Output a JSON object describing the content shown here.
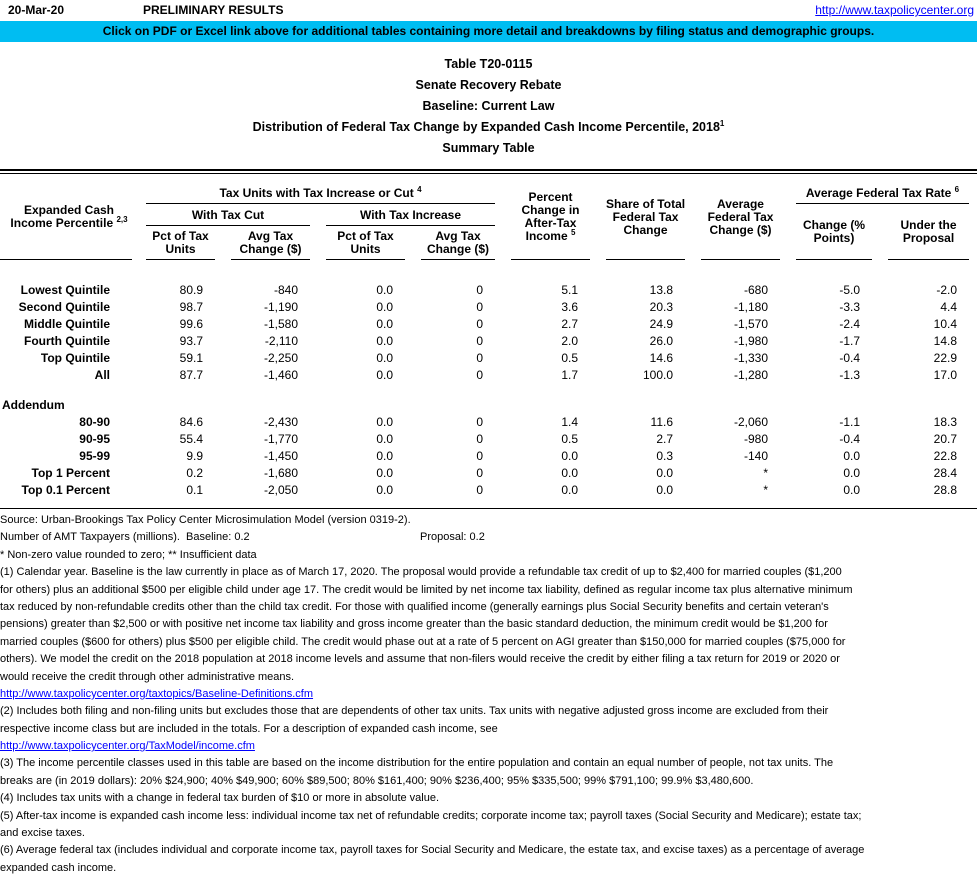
{
  "page": {
    "date": "20-Mar-20",
    "preliminary": "PRELIMINARY RESULTS",
    "site_link": "http://www.taxpolicycenter.org",
    "banner_text": "Click on PDF or Excel link above for additional tables containing more detail and breakdowns by filing status and demographic groups.",
    "banner_color": "#00bdf2",
    "link_color": "#0000ff"
  },
  "title": {
    "line1": "Table T20-0115",
    "line2": "Senate Recovery Rebate",
    "line3": "Baseline: Current Law",
    "line4": "Distribution of Federal Tax Change by Expanded Cash Income Percentile, 2018",
    "line4_sup": "1",
    "line5": "Summary Table"
  },
  "table": {
    "header": {
      "row_header": {
        "text": "Expanded Cash Income Percentile",
        "sup": "2,3"
      },
      "group_increase_or_cut": {
        "text": "Tax Units with Tax Increase or Cut",
        "sup": "4"
      },
      "with_tax_cut": "With Tax Cut",
      "with_tax_increase": "With Tax Increase",
      "col_pct_units": "Pct of Tax Units",
      "col_avg_change": "Avg Tax Change ($)",
      "col_pct_change_after_tax": {
        "text": "Percent Change in After-Tax Income",
        "sup": "5"
      },
      "col_share_total": "Share of Total Federal Tax Change",
      "col_avg_federal_change": "Average Federal Tax Change ($)",
      "group_avg_rate": {
        "text": "Average Federal Tax Rate",
        "sup": "6"
      },
      "col_rate_change": "Change (% Points)",
      "col_rate_under": "Under the Proposal"
    },
    "main_rows": [
      {
        "label": "Lowest Quintile",
        "values": [
          "80.9",
          "-840",
          "0.0",
          "0",
          "5.1",
          "13.8",
          "-680",
          "-5.0",
          "-2.0"
        ]
      },
      {
        "label": "Second Quintile",
        "values": [
          "98.7",
          "-1,190",
          "0.0",
          "0",
          "3.6",
          "20.3",
          "-1,180",
          "-3.3",
          "4.4"
        ]
      },
      {
        "label": "Middle Quintile",
        "values": [
          "99.6",
          "-1,580",
          "0.0",
          "0",
          "2.7",
          "24.9",
          "-1,570",
          "-2.4",
          "10.4"
        ]
      },
      {
        "label": "Fourth Quintile",
        "values": [
          "93.7",
          "-2,110",
          "0.0",
          "0",
          "2.0",
          "26.0",
          "-1,980",
          "-1.7",
          "14.8"
        ]
      },
      {
        "label": "Top Quintile",
        "values": [
          "59.1",
          "-2,250",
          "0.0",
          "0",
          "0.5",
          "14.6",
          "-1,330",
          "-0.4",
          "22.9"
        ]
      },
      {
        "label": "All",
        "values": [
          "87.7",
          "-1,460",
          "0.0",
          "0",
          "1.7",
          "100.0",
          "-1,280",
          "-1.3",
          "17.0"
        ]
      }
    ],
    "addendum_label": "Addendum",
    "addendum_rows": [
      {
        "label": "80-90",
        "values": [
          "84.6",
          "-2,430",
          "0.0",
          "0",
          "1.4",
          "11.6",
          "-2,060",
          "-1.1",
          "18.3"
        ]
      },
      {
        "label": "90-95",
        "values": [
          "55.4",
          "-1,770",
          "0.0",
          "0",
          "0.5",
          "2.7",
          "-980",
          "-0.4",
          "20.7"
        ]
      },
      {
        "label": "95-99",
        "values": [
          "9.9",
          "-1,450",
          "0.0",
          "0",
          "0.0",
          "0.3",
          "-140",
          "0.0",
          "22.8"
        ]
      },
      {
        "label": "Top 1 Percent",
        "values": [
          "0.2",
          "-1,680",
          "0.0",
          "0",
          "0.0",
          "0.0",
          "*",
          "0.0",
          "28.4"
        ]
      },
      {
        "label": "Top 0.1 Percent",
        "values": [
          "0.1",
          "-2,050",
          "0.0",
          "0",
          "0.0",
          "0.0",
          "*",
          "0.0",
          "28.8"
        ]
      }
    ]
  },
  "footer": {
    "source": "Source: Urban-Brookings Tax Policy Center Microsimulation Model (version 0319-2).",
    "amt_left": "Number of AMT Taxpayers (millions).  Baseline: 0.2",
    "amt_right": "Proposal: 0.2",
    "symbols_note": "* Non-zero value rounded to zero; ** Insufficient data",
    "lines": [
      {
        "text": "(1) Calendar year. Baseline is the law currently in place as of March 17, 2020. The proposal would provide a refundable tax credit of up to $2,400 for married couples ($1,200",
        "link": false
      },
      {
        "text": "for others) plus an additional $500 per eligible child under age 17. The credit would be limited by net income tax liability, defined as regular income tax plus alternative minimum",
        "link": false
      },
      {
        "text": "tax reduced by non-refundable credits other than the child tax credit. For those with qualified income (generally earnings plus Social Security benefits and certain veteran's",
        "link": false
      },
      {
        "text": "pensions) greater than $2,500 or with positive net income tax liability and gross income greater than the basic standard deduction, the minimum credit would be $1,200 for",
        "link": false
      },
      {
        "text": "married couples ($600 for others) plus $500 per eligible child. The credit would phase out at a rate of 5 percent on AGI greater than $150,000 for married couples ($75,000 for",
        "link": false
      },
      {
        "text": "others). We model the credit on the 2018 population at 2018 income levels and assume that non-filers would receive the credit by either filing a tax return for 2019 or 2020 or",
        "link": false
      },
      {
        "text": "would receive the credit through other administrative means.",
        "link": false
      },
      {
        "text": "http://www.taxpolicycenter.org/taxtopics/Baseline-Definitions.cfm",
        "link": true
      },
      {
        "text": "(2) Includes both filing and non-filing units but excludes those that are dependents of other tax units. Tax units with negative adjusted gross income are excluded from their",
        "link": false
      },
      {
        "text": "respective income class but are included in the totals. For a description of expanded cash income, see",
        "link": false
      },
      {
        "text": "http://www.taxpolicycenter.org/TaxModel/income.cfm",
        "link": true
      },
      {
        "text": "(3) The income percentile classes used in this table are based on the income distribution for the entire population and contain an equal number of people, not tax units. The",
        "link": false
      },
      {
        "text": "breaks are (in 2019 dollars): 20% $24,900; 40% $49,900; 60% $89,500; 80% $161,400; 90% $236,400; 95% $335,500; 99% $791,100; 99.9% $3,480,600.",
        "link": false
      },
      {
        "text": "(4) Includes tax units with a change in federal tax burden of $10 or more in absolute value.",
        "link": false
      },
      {
        "text": "(5) After-tax income is expanded cash income less: individual income tax net of refundable credits; corporate income tax; payroll taxes (Social Security and Medicare); estate tax;",
        "link": false
      },
      {
        "text": "and excise taxes.",
        "link": false
      },
      {
        "text": "(6) Average federal tax (includes individual and corporate income tax, payroll taxes for Social Security and Medicare, the estate tax, and excise taxes) as a percentage of average",
        "link": false
      },
      {
        "text": "expanded cash income.",
        "link": false
      }
    ]
  }
}
